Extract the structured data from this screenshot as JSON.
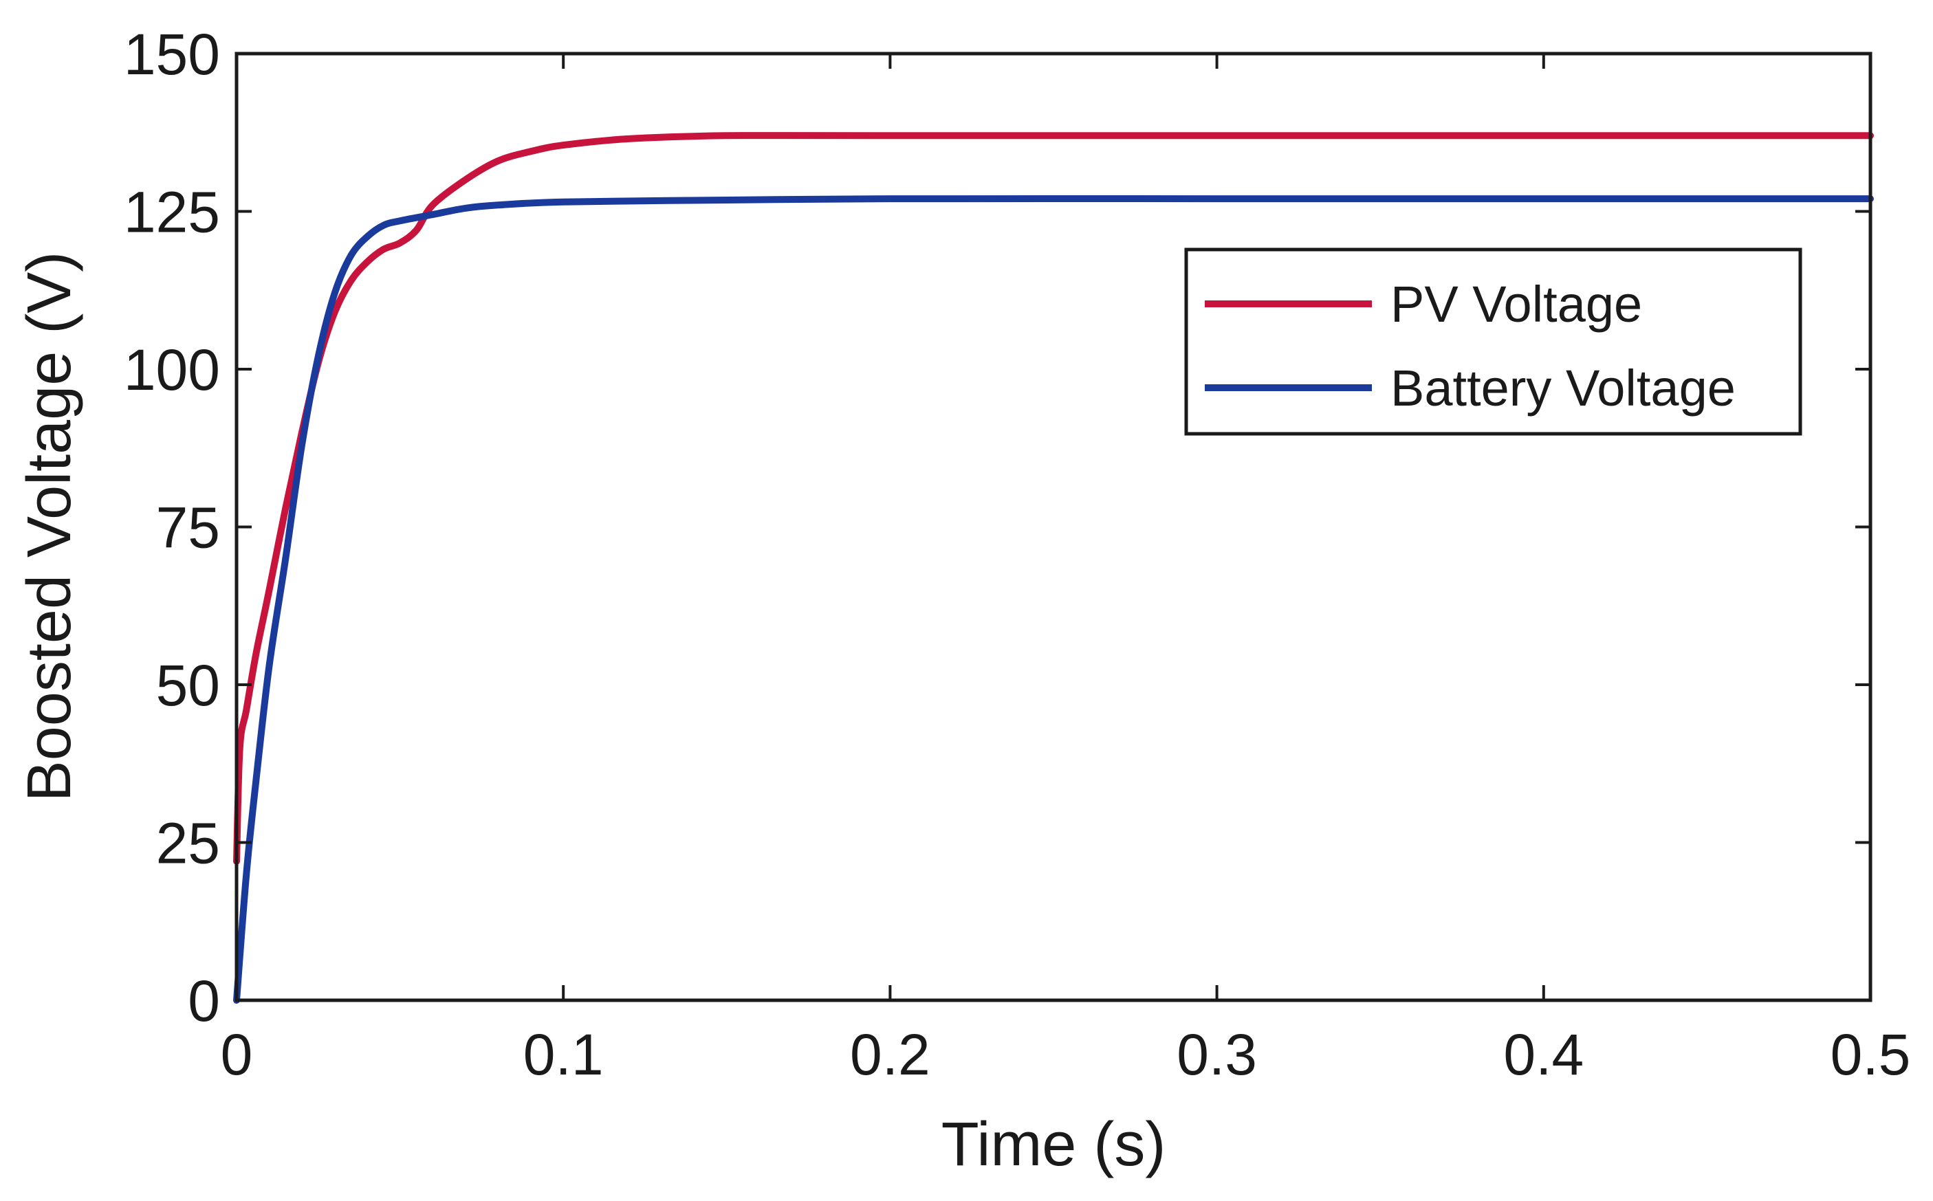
{
  "chart_data": {
    "type": "line",
    "title": "",
    "xlabel": "Time (s)",
    "ylabel": "Boosted Voltage (V)",
    "xlim": [
      0,
      0.5
    ],
    "ylim": [
      0,
      150
    ],
    "xticks": [
      0,
      0.1,
      0.2,
      0.3,
      0.4,
      0.5
    ],
    "xtick_labels": [
      "0",
      "0.1",
      "0.2",
      "0.3",
      "0.4",
      "0.5"
    ],
    "yticks": [
      0,
      25,
      50,
      75,
      100,
      125,
      150
    ],
    "ytick_labels": [
      "0",
      "25",
      "50",
      "75",
      "100",
      "125",
      "150"
    ],
    "grid": false,
    "legend_position": "upper-right",
    "series": [
      {
        "name": "PV Voltage",
        "color": "#c8143c",
        "x": [
          0,
          0.001,
          0.003,
          0.006,
          0.01,
          0.015,
          0.02,
          0.025,
          0.03,
          0.035,
          0.04,
          0.045,
          0.05,
          0.055,
          0.06,
          0.07,
          0.08,
          0.09,
          0.1,
          0.12,
          0.15,
          0.2,
          0.3,
          0.4,
          0.5
        ],
        "y": [
          22,
          40,
          46,
          55,
          65,
          78,
          90,
          101,
          109,
          114,
          117,
          119,
          120,
          122,
          126,
          130,
          133,
          134.5,
          135.5,
          136.5,
          137,
          137,
          137,
          137,
          137
        ]
      },
      {
        "name": "Battery Voltage",
        "color": "#1a3b9c",
        "x": [
          0,
          0.003,
          0.006,
          0.01,
          0.015,
          0.02,
          0.025,
          0.03,
          0.035,
          0.04,
          0.045,
          0.05,
          0.06,
          0.07,
          0.08,
          0.1,
          0.15,
          0.2,
          0.3,
          0.4,
          0.5
        ],
        "y": [
          0,
          20,
          35,
          53,
          70,
          88,
          102,
          112,
          118,
          121,
          122.8,
          123.5,
          124.5,
          125.5,
          126,
          126.5,
          126.8,
          127,
          127,
          127,
          127
        ]
      }
    ]
  }
}
